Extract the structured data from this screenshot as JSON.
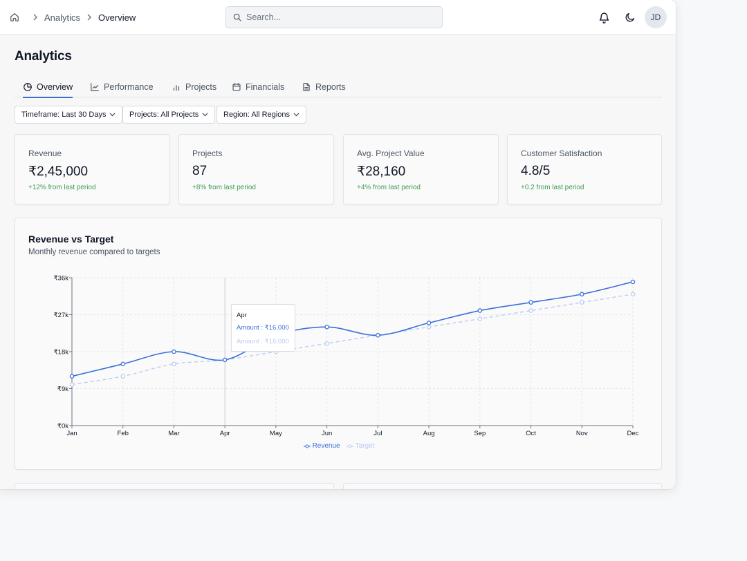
{
  "breadcrumb": {
    "items": [
      "Analytics"
    ],
    "current": "Overview"
  },
  "search": {
    "placeholder": "Search..."
  },
  "user": {
    "initials": "JD"
  },
  "page": {
    "title": "Analytics"
  },
  "tabs": [
    {
      "label": "Overview",
      "icon": "pie-chart-icon",
      "active": true
    },
    {
      "label": "Performance",
      "icon": "line-chart-icon"
    },
    {
      "label": "Projects",
      "icon": "bar-chart-icon"
    },
    {
      "label": "Financials",
      "icon": "calendar-icon"
    },
    {
      "label": "Reports",
      "icon": "document-icon"
    }
  ],
  "filters": [
    {
      "label": "Timeframe: Last 30 Days"
    },
    {
      "label": "Projects: All Projects"
    },
    {
      "label": "Region: All Regions"
    }
  ],
  "stats": [
    {
      "label": "Revenue",
      "value": "₹2,45,000",
      "delta": "+12% from last period"
    },
    {
      "label": "Projects",
      "value": "87",
      "delta": "+8% from last period"
    },
    {
      "label": "Avg. Project Value",
      "value": "₹28,160",
      "delta": "+4% from last period"
    },
    {
      "label": "Customer Satisfaction",
      "value": "4.8/5",
      "delta": "+0.2 from last period"
    }
  ],
  "colors": {
    "accent": "#3b6fd8",
    "target": "#b9cbef",
    "positive": "#3f9c52"
  },
  "chart_data": {
    "type": "line",
    "title": "Revenue vs Target",
    "subtitle": "Monthly revenue compared to targets",
    "categories": [
      "Jan",
      "Feb",
      "Mar",
      "Apr",
      "May",
      "Jun",
      "Jul",
      "Aug",
      "Sep",
      "Oct",
      "Nov",
      "Dec"
    ],
    "y_ticks": [
      {
        "value": 0,
        "label": "₹0k"
      },
      {
        "value": 9000,
        "label": "₹9k"
      },
      {
        "value": 18000,
        "label": "₹18k"
      },
      {
        "value": 27000,
        "label": "₹27k"
      },
      {
        "value": 36000,
        "label": "₹36k"
      }
    ],
    "ylim": [
      0,
      36000
    ],
    "grid": true,
    "legend_position": "bottom-center",
    "series": [
      {
        "name": "Revenue",
        "values": [
          12000,
          15000,
          18000,
          16000,
          22000,
          24000,
          22000,
          25000,
          28000,
          30000,
          32000,
          35000
        ]
      },
      {
        "name": "Target",
        "values": [
          10000,
          12000,
          15000,
          16000,
          18000,
          20000,
          22000,
          24000,
          26000,
          28000,
          30000,
          32000
        ]
      }
    ],
    "tooltip": {
      "month": "Apr",
      "revenue_text": "Amount : ₹16,000",
      "target_text": "Amount : ₹16,000"
    }
  }
}
